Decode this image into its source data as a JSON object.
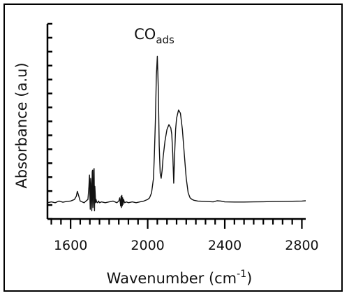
{
  "chart_data": {
    "type": "line",
    "xlabel": "Wavenumber (cm",
    "xlabel_sup": "-1",
    "xlabel_close": ")",
    "ylabel": "Absorbance (a.u)",
    "xlim": [
      1480,
      2820
    ],
    "ylim": [
      -0.1,
      1.1
    ],
    "x_ticks": [
      1600,
      2000,
      2400,
      2800
    ],
    "grid": false,
    "annotation": {
      "text": "CO",
      "sub": "ads",
      "x": 2060,
      "y": 0.98
    },
    "series": [
      {
        "x": [
          1480,
          1500,
          1520,
          1540,
          1560,
          1580,
          1600,
          1610,
          1620,
          1630,
          1635,
          1640,
          1645,
          1650,
          1660,
          1670,
          1680,
          1690,
          1695,
          1698,
          1700,
          1702,
          1704,
          1706,
          1708,
          1710,
          1712,
          1714,
          1716,
          1718,
          1720,
          1722,
          1724,
          1726,
          1728,
          1730,
          1732,
          1735,
          1740,
          1745,
          1750,
          1760,
          1780,
          1800,
          1820,
          1840,
          1850,
          1855,
          1860,
          1862,
          1864,
          1866,
          1868,
          1870,
          1872,
          1875,
          1880,
          1890,
          1900,
          1920,
          1940,
          1960,
          1980,
          2000,
          2010,
          2020,
          2030,
          2035,
          2040,
          2045,
          2050,
          2055,
          2060,
          2065,
          2070,
          2075,
          2080,
          2090,
          2100,
          2110,
          2120,
          2125,
          2130,
          2135,
          2140,
          2145,
          2150,
          2160,
          2170,
          2180,
          2190,
          2200,
          2210,
          2220,
          2230,
          2240,
          2260,
          2300,
          2340,
          2360,
          2380,
          2400,
          2450,
          2500,
          2550,
          2600,
          2650,
          2700,
          2750,
          2800,
          2820
        ],
        "y": [
          0.0,
          0.005,
          0.0,
          0.01,
          0.003,
          0.008,
          0.01,
          0.015,
          0.02,
          0.04,
          0.07,
          0.05,
          0.03,
          0.01,
          0.005,
          0.0,
          0.01,
          0.02,
          0.1,
          0.17,
          0.05,
          -0.04,
          0.15,
          0.12,
          0.0,
          -0.05,
          0.19,
          0.2,
          -0.03,
          0.0,
          0.2,
          0.21,
          -0.05,
          0.1,
          0.05,
          0.0,
          0.02,
          0.005,
          0.0,
          0.01,
          0.0,
          0.005,
          0.0,
          0.005,
          0.01,
          0.0,
          0.01,
          0.03,
          -0.02,
          0.04,
          -0.03,
          0.045,
          -0.02,
          0.03,
          -0.01,
          0.02,
          0.0,
          0.005,
          0.0,
          0.005,
          0.0,
          0.005,
          0.01,
          0.02,
          0.03,
          0.06,
          0.15,
          0.3,
          0.5,
          0.78,
          0.9,
          0.7,
          0.35,
          0.18,
          0.15,
          0.2,
          0.28,
          0.38,
          0.45,
          0.48,
          0.46,
          0.42,
          0.3,
          0.12,
          0.3,
          0.45,
          0.52,
          0.57,
          0.55,
          0.45,
          0.3,
          0.15,
          0.06,
          0.03,
          0.02,
          0.015,
          0.01,
          0.008,
          0.005,
          0.012,
          0.01,
          0.005,
          0.004,
          0.004,
          0.005,
          0.006,
          0.007,
          0.008,
          0.009,
          0.01,
          0.012
        ]
      }
    ]
  }
}
